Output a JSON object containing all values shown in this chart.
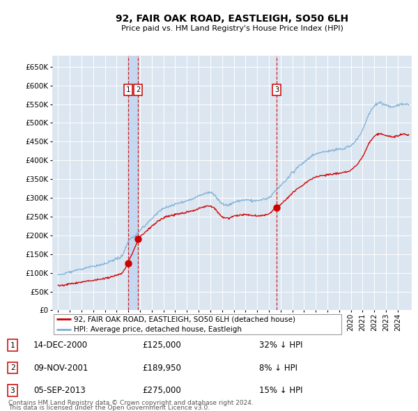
{
  "title": "92, FAIR OAK ROAD, EASTLEIGH, SO50 6LH",
  "subtitle": "Price paid vs. HM Land Registry's House Price Index (HPI)",
  "background_color": "#ffffff",
  "plot_bg_color": "#dce6f1",
  "grid_color": "#ffffff",
  "highlight_band_color": "#c5d8f0",
  "ylim": [
    0,
    680000
  ],
  "xlim": [
    1994.5,
    2025.2
  ],
  "yticks": [
    0,
    50000,
    100000,
    150000,
    200000,
    250000,
    300000,
    350000,
    400000,
    450000,
    500000,
    550000,
    600000,
    650000
  ],
  "ytick_labels": [
    "£0",
    "£50K",
    "£100K",
    "£150K",
    "£200K",
    "£250K",
    "£300K",
    "£350K",
    "£400K",
    "£450K",
    "£500K",
    "£550K",
    "£600K",
    "£650K"
  ],
  "xticks": [
    1995,
    1996,
    1997,
    1998,
    1999,
    2000,
    2001,
    2002,
    2003,
    2004,
    2005,
    2006,
    2007,
    2008,
    2009,
    2010,
    2011,
    2012,
    2013,
    2014,
    2015,
    2016,
    2017,
    2018,
    2019,
    2020,
    2021,
    2022,
    2023,
    2024
  ],
  "transaction_vline_color": "#cc0000",
  "transaction_marker_color": "#cc0000",
  "hpi_line_color": "#7aaed6",
  "price_line_color": "#cc0000",
  "legend_entries": [
    "92, FAIR OAK ROAD, EASTLEIGH, SO50 6LH (detached house)",
    "HPI: Average price, detached house, Eastleigh"
  ],
  "footer_lines": [
    "Contains HM Land Registry data © Crown copyright and database right 2024.",
    "This data is licensed under the Open Government Licence v3.0."
  ],
  "table_rows": [
    {
      "num": "1",
      "date": "14-DEC-2000",
      "price": "£125,000",
      "hpi": "32% ↓ HPI"
    },
    {
      "num": "2",
      "date": "09-NOV-2001",
      "price": "£189,950",
      "hpi": "8% ↓ HPI"
    },
    {
      "num": "3",
      "date": "05-SEP-2013",
      "price": "£275,000",
      "hpi": "15% ↓ HPI"
    }
  ],
  "t_dates": [
    2000.96,
    2001.84,
    2013.67
  ],
  "t_prices": [
    125000,
    189950,
    275000
  ],
  "t_labels": [
    "1",
    "2",
    "3"
  ]
}
